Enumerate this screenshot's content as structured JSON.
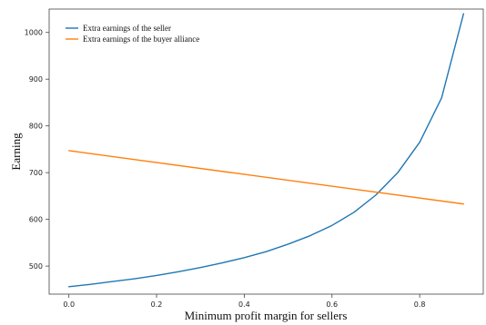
{
  "chart_data": {
    "type": "line",
    "title": "",
    "xlabel": "Minimum profit margin for sellers",
    "ylabel": "Earning",
    "xlim": [
      -0.045,
      0.945
    ],
    "ylim": [
      440,
      1050
    ],
    "xticks": [
      0.0,
      0.2,
      0.4,
      0.6,
      0.8
    ],
    "xtick_labels": [
      "0.0",
      "0.2",
      "0.4",
      "0.6",
      "0.8"
    ],
    "yticks": [
      500,
      600,
      700,
      800,
      900,
      1000
    ],
    "ytick_labels": [
      "500",
      "600",
      "700",
      "800",
      "900",
      "1000"
    ],
    "grid": false,
    "legend_position": "top-left",
    "series": [
      {
        "name": "Extra earnings of the seller",
        "color": "#1f77b4",
        "x": [
          0.0,
          0.05,
          0.1,
          0.15,
          0.2,
          0.25,
          0.3,
          0.35,
          0.4,
          0.45,
          0.5,
          0.55,
          0.6,
          0.65,
          0.7,
          0.75,
          0.8,
          0.85,
          0.9
        ],
        "y": [
          456,
          461,
          467,
          473,
          480,
          488,
          497,
          507,
          518,
          531,
          547,
          565,
          587,
          615,
          652,
          700,
          765,
          860,
          1040
        ]
      },
      {
        "name": "Extra earnings of the buyer alliance",
        "color": "#ff7f0e",
        "x": [
          0.0,
          0.9
        ],
        "y": [
          747,
          633
        ]
      }
    ]
  }
}
